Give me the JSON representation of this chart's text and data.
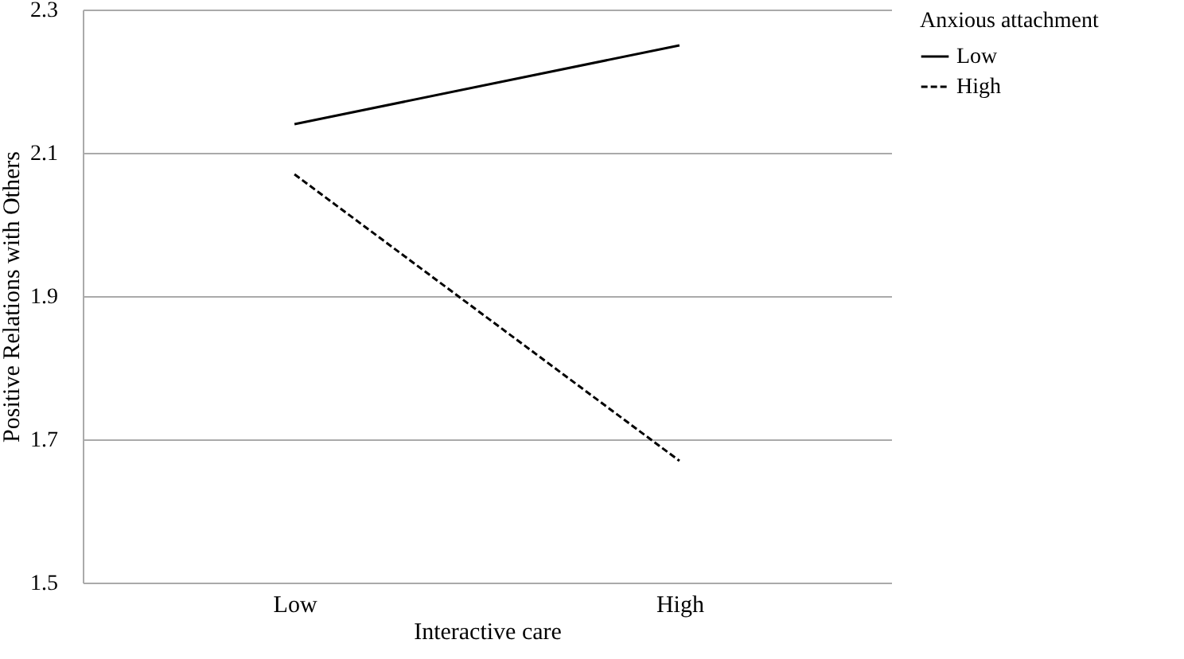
{
  "chart_data": {
    "type": "line",
    "xlabel": "Interactive care",
    "ylabel": "Positive Relations with Others",
    "legend_title": "Anxious attachment",
    "categories": [
      "Low",
      "High"
    ],
    "series": [
      {
        "name": "Low",
        "color": "#000000",
        "line_style": "solid",
        "values": [
          2.14,
          2.25
        ]
      },
      {
        "name": "High",
        "color": "#000000",
        "line_style": "dashed",
        "values": [
          2.07,
          1.67
        ]
      }
    ],
    "ylim": [
      1.5,
      2.3
    ],
    "yticks": [
      1.5,
      1.7,
      1.9,
      2.1,
      2.3
    ],
    "grid": "y",
    "legend": "right",
    "marker": "none"
  }
}
